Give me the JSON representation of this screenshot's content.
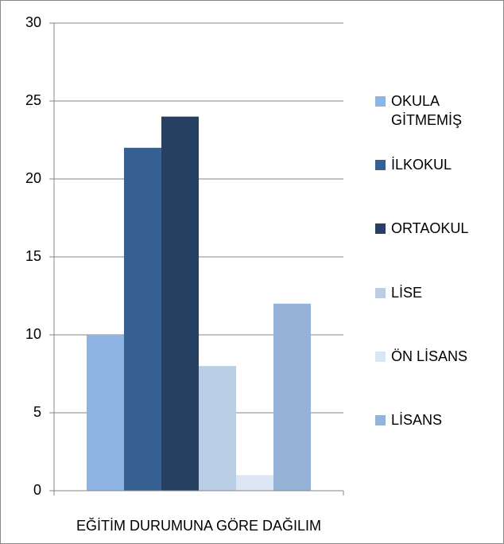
{
  "chart_data": {
    "type": "bar",
    "categories": [
      "EĞİTİM DURUMUNA GÖRE DAĞILIM"
    ],
    "series": [
      {
        "name": "OKULA GİTMEMİŞ",
        "color": "#8eb4e3",
        "values": [
          10
        ]
      },
      {
        "name": "İLKOKUL",
        "color": "#376092",
        "values": [
          22
        ]
      },
      {
        "name": "ORTAOKUL",
        "color": "#254061",
        "values": [
          24
        ]
      },
      {
        "name": "LİSE",
        "color": "#b9cde5",
        "values": [
          8
        ]
      },
      {
        "name": "ÖN LİSANS",
        "color": "#dce6f2",
        "values": [
          1
        ]
      },
      {
        "name": "LİSANS",
        "color": "#95b3d7",
        "values": [
          12
        ]
      }
    ],
    "ylim": [
      0,
      30
    ],
    "yticks": [
      0,
      5,
      10,
      15,
      20,
      25,
      30
    ],
    "grid": true,
    "legend": "right"
  }
}
